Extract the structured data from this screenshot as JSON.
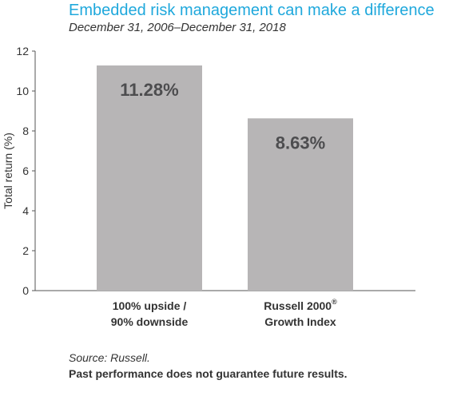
{
  "header": {
    "title": "Embedded risk management can make a difference",
    "subtitle": "December 31, 2006–December 31, 2018"
  },
  "chart_data": {
    "type": "bar",
    "categories": [
      "100% upside / 90% downside",
      "Russell 2000® Growth Index"
    ],
    "category_lines": [
      {
        "line1": "100% upside /",
        "line2": "90% downside",
        "sup": ""
      },
      {
        "line1": "Russell 2000",
        "line2": "Growth Index",
        "sup": "®"
      }
    ],
    "values": [
      11.28,
      8.63
    ],
    "data_labels": [
      "11.28%",
      "8.63%"
    ],
    "ylabel": "Total return (%)",
    "ylim": [
      0,
      12
    ],
    "yticks": [
      0,
      2,
      4,
      6,
      8,
      10,
      12
    ],
    "grid": false,
    "bar_color": "#b7b5b6",
    "label_color": "#4d4d4f"
  },
  "footer": {
    "source": "Source: Russell.",
    "disclaimer": "Past performance does not guarantee future results."
  }
}
